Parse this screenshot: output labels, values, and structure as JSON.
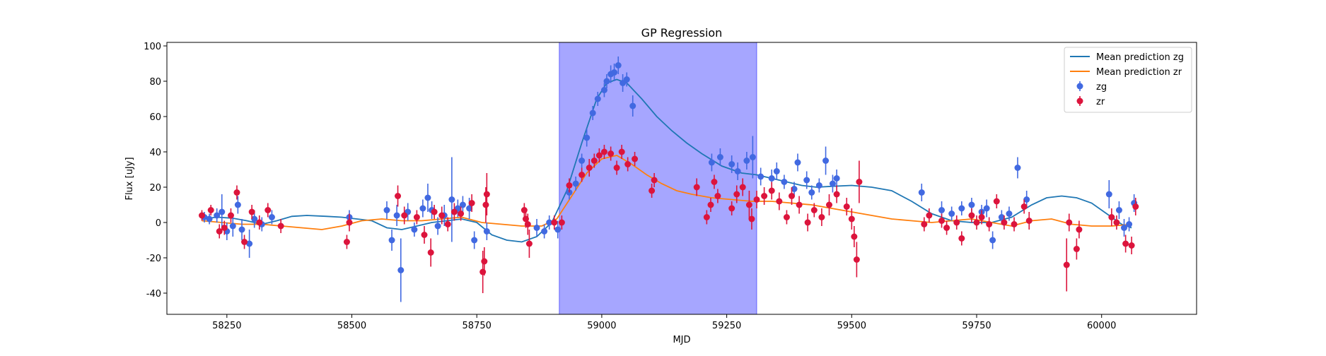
{
  "chart_data": {
    "type": "scatter",
    "title": "GP Regression",
    "xlabel": "MJD",
    "ylabel": "Flux [uJy]",
    "xlim": [
      58130,
      60190
    ],
    "ylim": [
      -52,
      102
    ],
    "xticks": [
      58250,
      58500,
      58750,
      59000,
      59250,
      59500,
      59750,
      60000
    ],
    "yticks": [
      -40,
      -20,
      0,
      20,
      40,
      60,
      80,
      100
    ],
    "grid": false,
    "legend_position": "top-right",
    "shaded_region": {
      "x0": 58915,
      "x1": 59310,
      "color": "#0000ff",
      "alpha": 0.35
    },
    "series": [
      {
        "name": "Mean prediction zg",
        "kind": "line",
        "color": "#1f77b4",
        "x": [
          58200,
          58230,
          58260,
          58290,
          58320,
          58350,
          58380,
          58410,
          58450,
          58480,
          58510,
          58540,
          58570,
          58600,
          58630,
          58660,
          58690,
          58720,
          58750,
          58780,
          58810,
          58840,
          58870,
          58900,
          58930,
          58960,
          58990,
          59010,
          59030,
          59050,
          59080,
          59110,
          59140,
          59170,
          59200,
          59240,
          59280,
          59310,
          59340,
          59370,
          59400,
          59430,
          59460,
          59500,
          59540,
          59580,
          59620,
          59660,
          59700,
          59740,
          59780,
          59820,
          59860,
          59890,
          59920,
          59950,
          59980,
          60010,
          60040,
          60060
        ],
        "y": [
          2,
          3,
          2.5,
          1,
          -1,
          1,
          3.5,
          4,
          3.5,
          3,
          2,
          1,
          -3,
          -4,
          -2,
          0,
          1,
          2,
          0,
          -7,
          -10,
          -11,
          -8,
          0,
          18,
          45,
          70,
          79,
          81,
          79,
          70,
          60,
          52,
          45,
          39,
          32,
          28,
          27,
          25,
          23,
          21,
          20,
          20.5,
          21,
          20,
          18,
          12,
          5,
          1,
          0,
          0,
          3,
          10,
          14,
          15,
          14,
          11,
          5,
          -1,
          -3
        ]
      },
      {
        "name": "Mean prediction zr",
        "kind": "line",
        "color": "#ff7f0e",
        "x": [
          58200,
          58240,
          58280,
          58320,
          58360,
          58400,
          58440,
          58480,
          58520,
          58560,
          58600,
          58640,
          58680,
          58720,
          58760,
          58800,
          58840,
          58880,
          58910,
          58940,
          58970,
          59000,
          59030,
          59060,
          59090,
          59120,
          59150,
          59180,
          59220,
          59260,
          59300,
          59340,
          59380,
          59420,
          59460,
          59500,
          59540,
          59580,
          59620,
          59660,
          59700,
          59740,
          59780,
          59820,
          59860,
          59900,
          59940,
          59980,
          60020,
          60060
        ],
        "y": [
          1,
          0,
          -1,
          -1,
          -2,
          -3,
          -4,
          -2,
          1,
          2,
          1,
          1,
          2,
          3,
          0,
          -1,
          -2,
          -2,
          2,
          15,
          28,
          36,
          38,
          33,
          27,
          22,
          18,
          16,
          14,
          13,
          12,
          12,
          11,
          10,
          8,
          6,
          4,
          2,
          1,
          0,
          1,
          2,
          0,
          -2,
          1,
          2,
          -1,
          -2,
          -2,
          -1
        ]
      },
      {
        "name": "zg",
        "kind": "errorbar",
        "color": "#4169e1",
        "points": [
          [
            58205,
            3,
            3
          ],
          [
            58215,
            2,
            3
          ],
          [
            58230,
            4,
            4
          ],
          [
            58240,
            6,
            10
          ],
          [
            58250,
            -5,
            5
          ],
          [
            58262,
            -2,
            6
          ],
          [
            58272,
            10,
            5
          ],
          [
            58280,
            -4,
            6
          ],
          [
            58295,
            -12,
            8
          ],
          [
            58305,
            2,
            5
          ],
          [
            58320,
            -1,
            4
          ],
          [
            58340,
            3,
            4
          ],
          [
            58495,
            3,
            4
          ],
          [
            58570,
            7,
            5
          ],
          [
            58580,
            -10,
            6
          ],
          [
            58590,
            4,
            6
          ],
          [
            58598,
            -27,
            18
          ],
          [
            58612,
            6,
            5
          ],
          [
            58625,
            -4,
            4
          ],
          [
            58642,
            8,
            5
          ],
          [
            58652,
            14,
            8
          ],
          [
            58660,
            7,
            5
          ],
          [
            58672,
            -2,
            5
          ],
          [
            58685,
            4,
            6
          ],
          [
            58700,
            13,
            24
          ],
          [
            58712,
            8,
            5
          ],
          [
            58722,
            10,
            5
          ],
          [
            58735,
            8,
            6
          ],
          [
            58745,
            -10,
            5
          ],
          [
            58770,
            -5,
            5
          ],
          [
            58870,
            -3,
            5
          ],
          [
            58885,
            -5,
            4
          ],
          [
            58895,
            0,
            4
          ],
          [
            58912,
            -4,
            5
          ],
          [
            58935,
            17,
            4
          ],
          [
            58948,
            22,
            4
          ],
          [
            58960,
            35,
            4
          ],
          [
            58970,
            48,
            5
          ],
          [
            58982,
            62,
            4
          ],
          [
            58992,
            70,
            4
          ],
          [
            59005,
            75,
            4
          ],
          [
            59010,
            80,
            4
          ],
          [
            59018,
            84,
            5
          ],
          [
            59025,
            85,
            5
          ],
          [
            59033,
            89,
            5
          ],
          [
            59042,
            79,
            5
          ],
          [
            59050,
            81,
            4
          ],
          [
            59062,
            66,
            6
          ],
          [
            59220,
            34,
            5
          ],
          [
            59237,
            37,
            5
          ],
          [
            59260,
            33,
            5
          ],
          [
            59272,
            29,
            5
          ],
          [
            59290,
            35,
            5
          ],
          [
            59302,
            37,
            12
          ],
          [
            59318,
            26,
            5
          ],
          [
            59340,
            25,
            5
          ],
          [
            59350,
            29,
            5
          ],
          [
            59365,
            23,
            4
          ],
          [
            59385,
            19,
            4
          ],
          [
            59392,
            34,
            5
          ],
          [
            59410,
            24,
            5
          ],
          [
            59420,
            17,
            4
          ],
          [
            59435,
            21,
            4
          ],
          [
            59448,
            35,
            8
          ],
          [
            59462,
            22,
            5
          ],
          [
            59470,
            25,
            5
          ],
          [
            59640,
            17,
            5
          ],
          [
            59680,
            7,
            5
          ],
          [
            59700,
            5,
            4
          ],
          [
            59720,
            8,
            4
          ],
          [
            59740,
            10,
            4
          ],
          [
            59760,
            6,
            4
          ],
          [
            59770,
            8,
            5
          ],
          [
            59782,
            -10,
            5
          ],
          [
            59800,
            3,
            4
          ],
          [
            59815,
            5,
            4
          ],
          [
            59832,
            31,
            6
          ],
          [
            59850,
            13,
            5
          ],
          [
            60015,
            16,
            8
          ],
          [
            60035,
            7,
            5
          ],
          [
            60045,
            -3,
            5
          ],
          [
            60055,
            -1,
            4
          ],
          [
            60065,
            11,
            5
          ]
        ]
      },
      {
        "name": "zr",
        "kind": "errorbar",
        "color": "#dc143c",
        "points": [
          [
            58200,
            4,
            3
          ],
          [
            58218,
            7,
            3
          ],
          [
            58235,
            -5,
            4
          ],
          [
            58245,
            -3,
            4
          ],
          [
            58258,
            4,
            4
          ],
          [
            58270,
            17,
            4
          ],
          [
            58285,
            -11,
            4
          ],
          [
            58300,
            6,
            4
          ],
          [
            58315,
            0,
            4
          ],
          [
            58332,
            7,
            4
          ],
          [
            58358,
            -2,
            4
          ],
          [
            58490,
            -11,
            4
          ],
          [
            58495,
            0,
            5
          ],
          [
            58592,
            15,
            6
          ],
          [
            58605,
            4,
            5
          ],
          [
            58630,
            3,
            4
          ],
          [
            58645,
            -7,
            5
          ],
          [
            58658,
            -17,
            8
          ],
          [
            58665,
            6,
            4
          ],
          [
            58680,
            4,
            5
          ],
          [
            58692,
            -1,
            4
          ],
          [
            58705,
            6,
            5
          ],
          [
            58718,
            5,
            4
          ],
          [
            58740,
            11,
            5
          ],
          [
            58762,
            -28,
            12
          ],
          [
            58765,
            -22,
            8
          ],
          [
            58768,
            10,
            10
          ],
          [
            58770,
            16,
            12
          ],
          [
            58845,
            7,
            4
          ],
          [
            58848,
            2,
            5
          ],
          [
            58852,
            -1,
            6
          ],
          [
            58855,
            -12,
            8
          ],
          [
            58905,
            0,
            4
          ],
          [
            58920,
            0,
            4
          ],
          [
            58935,
            21,
            4
          ],
          [
            58960,
            27,
            4
          ],
          [
            58975,
            31,
            5
          ],
          [
            58985,
            35,
            4
          ],
          [
            58995,
            38,
            4
          ],
          [
            59005,
            40,
            4
          ],
          [
            59018,
            39,
            4
          ],
          [
            59030,
            31,
            4
          ],
          [
            59040,
            40,
            4
          ],
          [
            59052,
            33,
            4
          ],
          [
            59066,
            36,
            4
          ],
          [
            59100,
            18,
            4
          ],
          [
            59105,
            24,
            4
          ],
          [
            59190,
            20,
            5
          ],
          [
            59210,
            3,
            4
          ],
          [
            59218,
            10,
            4
          ],
          [
            59225,
            23,
            4
          ],
          [
            59232,
            15,
            4
          ],
          [
            59260,
            8,
            4
          ],
          [
            59270,
            16,
            5
          ],
          [
            59282,
            20,
            5
          ],
          [
            59295,
            10,
            8
          ],
          [
            59300,
            2,
            6
          ],
          [
            59310,
            13,
            5
          ],
          [
            59325,
            15,
            5
          ],
          [
            59340,
            18,
            5
          ],
          [
            59355,
            12,
            5
          ],
          [
            59370,
            3,
            4
          ],
          [
            59380,
            15,
            5
          ],
          [
            59395,
            10,
            5
          ],
          [
            59412,
            0,
            5
          ],
          [
            59425,
            7,
            4
          ],
          [
            59440,
            3,
            5
          ],
          [
            59455,
            10,
            6
          ],
          [
            59470,
            16,
            5
          ],
          [
            59490,
            9,
            5
          ],
          [
            59500,
            2,
            6
          ],
          [
            59505,
            -8,
            6
          ],
          [
            59510,
            -21,
            10
          ],
          [
            59515,
            23,
            12
          ],
          [
            59645,
            -1,
            4
          ],
          [
            59655,
            4,
            4
          ],
          [
            59680,
            1,
            4
          ],
          [
            59690,
            -3,
            4
          ],
          [
            59710,
            0,
            4
          ],
          [
            59720,
            -9,
            4
          ],
          [
            59740,
            4,
            4
          ],
          [
            59750,
            0,
            4
          ],
          [
            59760,
            3,
            4
          ],
          [
            59775,
            -1,
            4
          ],
          [
            59790,
            12,
            4
          ],
          [
            59805,
            0,
            4
          ],
          [
            59825,
            -1,
            4
          ],
          [
            59845,
            9,
            4
          ],
          [
            59855,
            1,
            5
          ],
          [
            59930,
            -24,
            15
          ],
          [
            59935,
            0,
            5
          ],
          [
            59950,
            -15,
            6
          ],
          [
            59955,
            -4,
            5
          ],
          [
            60020,
            3,
            5
          ],
          [
            60030,
            0,
            4
          ],
          [
            60048,
            -12,
            5
          ],
          [
            60060,
            -13,
            5
          ],
          [
            60068,
            9,
            5
          ]
        ]
      }
    ]
  }
}
